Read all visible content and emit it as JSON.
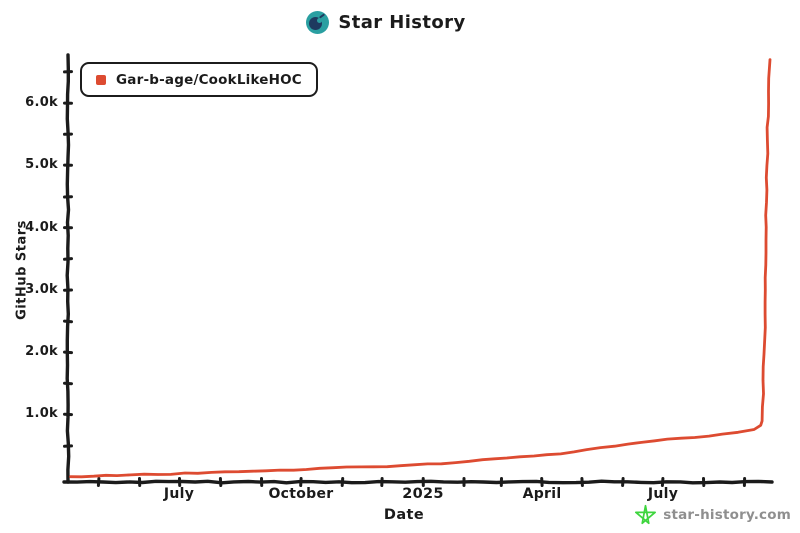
{
  "page": {
    "title": "Star History",
    "footer_site": "star-history.com"
  },
  "legend": {
    "label": "Gar-b-age/CookLikeHOC"
  },
  "colors": {
    "series": "#dd4b31",
    "ink": "#1b1b1b",
    "logo_teal": "#2a9fa1",
    "logo_navy": "#1e3a5f",
    "watermark_green": "#3ed53e",
    "watermark_text": "#8f8f8f"
  },
  "y_axis": {
    "label": "GitHub Stars",
    "ticks": [
      "6.0k",
      "5.0k",
      "4.0k",
      "3.0k",
      "2.0k",
      "1.0k"
    ]
  },
  "x_axis": {
    "label": "Date",
    "ticks": [
      "July",
      "October",
      "2025",
      "April",
      "July"
    ]
  },
  "chart_data": {
    "type": "line",
    "title": "Star History",
    "xlabel": "Date",
    "ylabel": "GitHub Stars",
    "grid": false,
    "legend_position": "top-left",
    "x_domain": [
      "2024-04-08",
      "2025-09-20"
    ],
    "ylim": [
      0,
      6800
    ],
    "y_ticks": [
      1000,
      2000,
      3000,
      4000,
      5000,
      6000
    ],
    "x_tick_labels": [
      "July",
      "October",
      "2025",
      "April",
      "July"
    ],
    "series": [
      {
        "name": "Gar-b-age/CookLikeHOC",
        "color": "#dd4b31",
        "points": [
          [
            "2024-04-10",
            5
          ],
          [
            "2024-05-15",
            22
          ],
          [
            "2024-06-15",
            40
          ],
          [
            "2024-07-15",
            60
          ],
          [
            "2024-08-15",
            85
          ],
          [
            "2024-09-15",
            110
          ],
          [
            "2024-10-15",
            140
          ],
          [
            "2024-11-15",
            162
          ],
          [
            "2024-12-15",
            182
          ],
          [
            "2025-01-15",
            212
          ],
          [
            "2025-02-15",
            278
          ],
          [
            "2025-03-15",
            325
          ],
          [
            "2025-04-15",
            370
          ],
          [
            "2025-05-15",
            472
          ],
          [
            "2025-06-15",
            556
          ],
          [
            "2025-07-15",
            622
          ],
          [
            "2025-08-15",
            688
          ],
          [
            "2025-09-08",
            762
          ],
          [
            "2025-09-13",
            830
          ],
          [
            "2025-09-14",
            900
          ],
          [
            "2025-09-16",
            2200
          ],
          [
            "2025-09-17",
            3800
          ],
          [
            "2025-09-18",
            5400
          ],
          [
            "2025-09-19",
            6400
          ],
          [
            "2025-09-20",
            6700
          ]
        ]
      }
    ]
  }
}
